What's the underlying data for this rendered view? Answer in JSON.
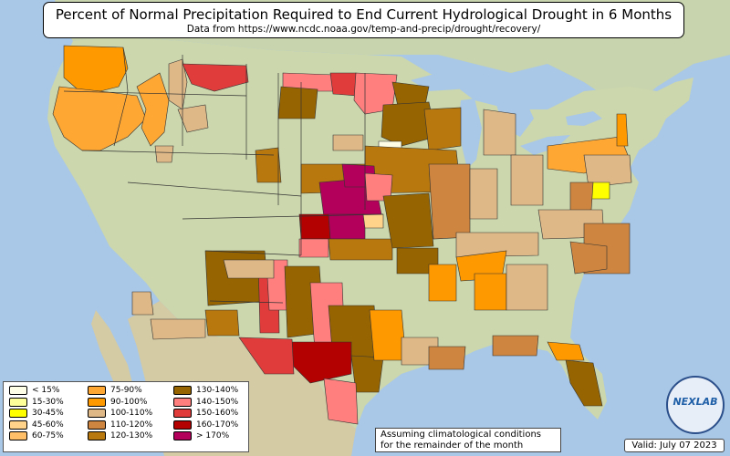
{
  "title": "Percent of Normal Precipitation Required to End Current Hydrological Drought in 6 Months",
  "subtitle": "Data from https://www.ncdc.noaa.gov/temp-and-precip/drought/recovery/",
  "legend": [
    {
      "label": "< 15%",
      "color": "#fefee6"
    },
    {
      "label": "15-30%",
      "color": "#ffff99"
    },
    {
      "label": "30-45%",
      "color": "#ffff00"
    },
    {
      "label": "45-60%",
      "color": "#ffd48a"
    },
    {
      "label": "60-75%",
      "color": "#ffbf69"
    },
    {
      "label": "75-90%",
      "color": "#ffa733"
    },
    {
      "label": "90-100%",
      "color": "#ff9900"
    },
    {
      "label": "100-110%",
      "color": "#deb887"
    },
    {
      "label": "110-120%",
      "color": "#cd853f"
    },
    {
      "label": "120-130%",
      "color": "#b8780d"
    },
    {
      "label": "130-140%",
      "color": "#966400"
    },
    {
      "label": "140-150%",
      "color": "#ff7f7f"
    },
    {
      "label": "150-160%",
      "color": "#e03c3c"
    },
    {
      "label": "160-170%",
      "color": "#b30000"
    },
    {
      "label": "> 170%",
      "color": "#b3005a"
    }
  ],
  "note": {
    "line1": "Assuming climatological conditions",
    "line2": "for the remainder of the month"
  },
  "valid": "Valid: July 07 2023",
  "logo_text": "NEXLAB",
  "colors": {
    "ocean": "#a9c7e6",
    "land_base": "#c9d6ac",
    "land_light": "#e3e3cf",
    "mountain": "#bfa98d",
    "canada": "#c8d4ad",
    "mexico": "#d4caa3"
  }
}
